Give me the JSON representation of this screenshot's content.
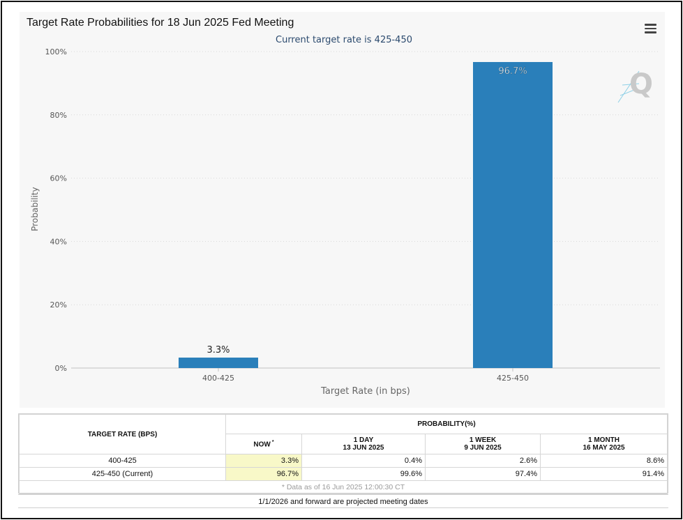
{
  "chart_data": {
    "type": "bar",
    "title": "Target Rate Probabilities for 18 Jun 2025 Fed Meeting",
    "subtitle": "Current target rate is 425-450",
    "xlabel": "Target Rate (in bps)",
    "ylabel": "Probability",
    "categories": [
      "400-425",
      "425-450"
    ],
    "values": [
      3.3,
      96.7
    ],
    "data_labels": [
      "3.3%",
      "96.7%"
    ],
    "ylim": [
      0,
      100
    ],
    "yticks": [
      0,
      20,
      40,
      60,
      80,
      100
    ],
    "ytick_labels": [
      "0%",
      "20%",
      "40%",
      "60%",
      "80%",
      "100%"
    ],
    "grid": true,
    "bar_color": "#2a7fba",
    "legend": "none"
  },
  "table": {
    "header_target": "TARGET RATE (BPS)",
    "header_probability": "PROBABILITY(%)",
    "columns": [
      {
        "line1": "NOW",
        "line2": "",
        "asterisk": "*"
      },
      {
        "line1": "1 DAY",
        "line2": "13 JUN 2025"
      },
      {
        "line1": "1 WEEK",
        "line2": "9 JUN 2025"
      },
      {
        "line1": "1 MONTH",
        "line2": "16 MAY 2025"
      }
    ],
    "rows": [
      {
        "rate": "400-425",
        "values": [
          "3.3%",
          "0.4%",
          "2.6%",
          "8.6%"
        ]
      },
      {
        "rate": "425-450 (Current)",
        "values": [
          "96.7%",
          "99.6%",
          "97.4%",
          "91.4%"
        ]
      }
    ],
    "note": "* Data as of 16 Jun 2025 12:00:30 CT"
  },
  "footnote": "1/1/2026 and forward are projected meeting dates",
  "icons": {
    "menu": "hamburger-menu-icon",
    "watermark": "quikstrike-q-logo"
  }
}
